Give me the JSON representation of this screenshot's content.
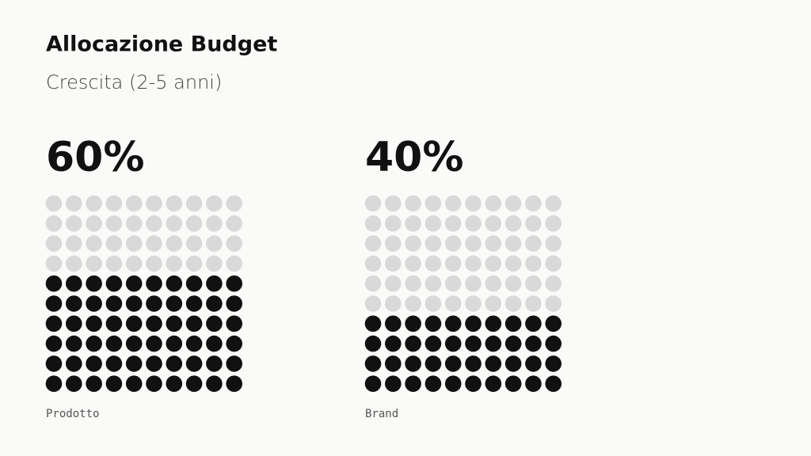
{
  "chart_data": {
    "type": "waffle",
    "title": "Allocazione Budget",
    "subtitle": "Crescita (2-5 anni)",
    "categories": [
      "Prodotto",
      "Brand"
    ],
    "values": [
      60,
      40
    ],
    "value_labels": [
      "60%",
      "40%"
    ],
    "color": "#111111",
    "empty_color": "#d9d9d9"
  }
}
